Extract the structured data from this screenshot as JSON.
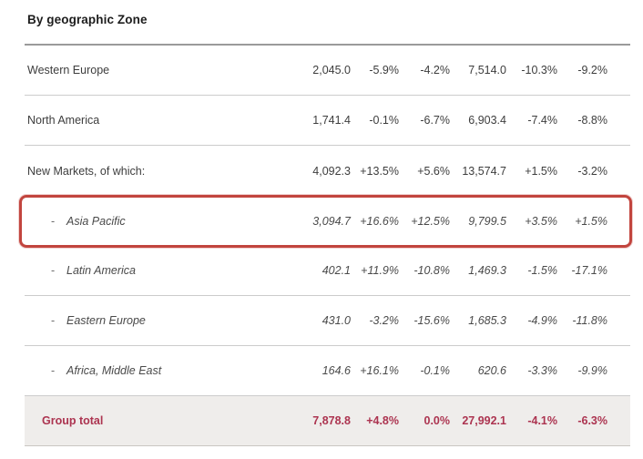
{
  "page": {
    "title": "By geographic Zone"
  },
  "table": {
    "rows": [
      {
        "label": "Western Europe",
        "level": "top",
        "values": [
          "2,045.0",
          "-5.9%",
          "-4.2%",
          "7,514.0",
          "-10.3%",
          "-9.2%"
        ]
      },
      {
        "label": "North America",
        "level": "top",
        "values": [
          "1,741.4",
          "-0.1%",
          "-6.7%",
          "6,903.4",
          "-7.4%",
          "-8.8%"
        ]
      },
      {
        "label": "New Markets, of which:",
        "level": "top",
        "values": [
          "4,092.3",
          "+13.5%",
          "+5.6%",
          "13,574.7",
          "+1.5%",
          "-3.2%"
        ]
      },
      {
        "label": "Asia Pacific",
        "level": "sub",
        "bullet": "-",
        "highlighted": true,
        "values": [
          "3,094.7",
          "+16.6%",
          "+12.5%",
          "9,799.5",
          "+3.5%",
          "+1.5%"
        ]
      },
      {
        "label": "Latin America",
        "level": "sub",
        "bullet": "-",
        "values": [
          "402.1",
          "+11.9%",
          "-10.8%",
          "1,469.3",
          "-1.5%",
          "-17.1%"
        ]
      },
      {
        "label": "Eastern Europe",
        "level": "sub",
        "bullet": "-",
        "values": [
          "431.0",
          "-3.2%",
          "-15.6%",
          "1,685.3",
          "-4.9%",
          "-11.8%"
        ]
      },
      {
        "label": "Africa, Middle East",
        "level": "sub",
        "bullet": "-",
        "values": [
          "164.6",
          "+16.1%",
          "-0.1%",
          "620.6",
          "-3.3%",
          "-9.9%"
        ]
      },
      {
        "label": "Group total",
        "level": "total",
        "values": [
          "7,878.8",
          "+4.8%",
          "0.0%",
          "27,992.1",
          "-4.1%",
          "-6.3%"
        ]
      }
    ]
  },
  "annotation": {
    "highlighted_row": "Asia Pacific",
    "box_color": "#c2453e"
  },
  "colors": {
    "total_row_text": "#ac3450",
    "total_row_background": "#efedeb",
    "separator": "#cccccc",
    "header_separator": "#9a9a9a"
  }
}
